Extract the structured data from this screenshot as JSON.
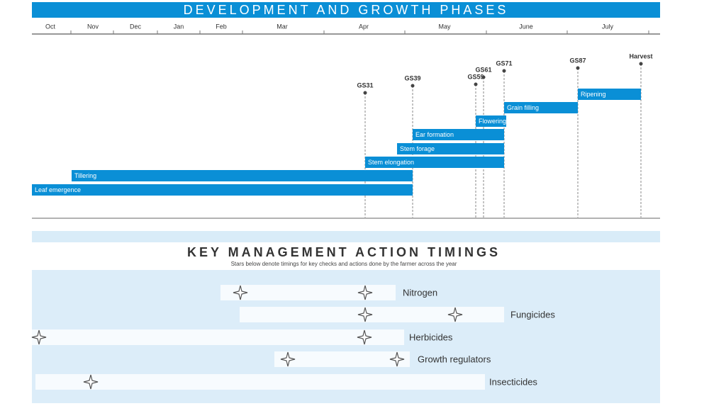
{
  "header": {
    "title": "DEVELOPMENT AND GROWTH PHASES"
  },
  "months": [
    "Oct",
    "Nov",
    "Dec",
    "Jan",
    "Feb",
    "Mar",
    "Apr",
    "May",
    "June",
    "July"
  ],
  "stages": [
    "GS31",
    "GS39",
    "GS59",
    "GS61",
    "GS71",
    "GS87",
    "Harvest"
  ],
  "phases": [
    "Leaf emergence",
    "Tillering",
    "Stem elongation",
    "Stem forage",
    "Ear formation",
    "Flowering",
    "Grain filling",
    "Ripening"
  ],
  "actions": {
    "title": "KEY MANAGEMENT ACTION TIMINGS",
    "subtitle": "Stars below denote timings for key checks and actions done by the farmer across the year",
    "items": [
      "Nitrogen",
      "Fungicides",
      "Herbicides",
      "Growth regulators",
      "Insecticides"
    ]
  }
}
